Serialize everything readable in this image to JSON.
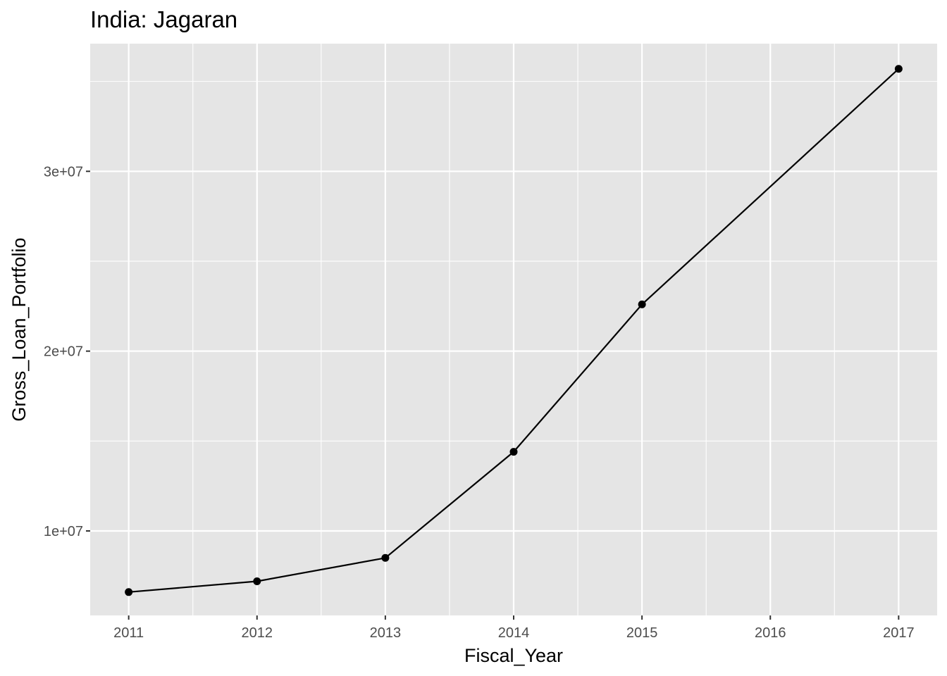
{
  "chart_data": {
    "type": "line",
    "title": "India:  Jagaran",
    "xlabel": "Fiscal_Year",
    "ylabel": "Gross_Loan_Portfolio",
    "x": [
      2011,
      2012,
      2013,
      2014,
      2015,
      2016,
      2017
    ],
    "x_tick_labels": [
      "2011",
      "2012",
      "2013",
      "2014",
      "2015",
      "2016",
      "2017"
    ],
    "xlim": [
      2010.7,
      2017.3
    ],
    "ylim": [
      5300000,
      37100000
    ],
    "y_ticks": [
      10000000,
      20000000,
      30000000
    ],
    "y_tick_labels": [
      "1e+07",
      "2e+07",
      "3e+07"
    ],
    "y_minor_ticks": [
      15000000,
      25000000,
      35000000
    ],
    "series": [
      {
        "x": [
          2011,
          2012,
          2013,
          2014,
          2015,
          2017
        ],
        "values": [
          6600000,
          7200000,
          8500000,
          14400000,
          22600000,
          35700000
        ]
      }
    ],
    "grid": true,
    "legend": "none",
    "colors": {
      "panel": "#e5e5e5",
      "grid": "#ffffff",
      "line": "#000000",
      "point": "#000000",
      "tick_text": "#4d4d4d"
    }
  }
}
